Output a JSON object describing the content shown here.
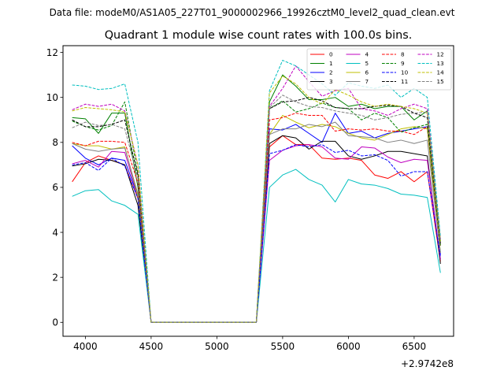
{
  "chart_data": {
    "type": "line",
    "suptitle": "Data file: modeM0/AS1A05_227T01_9000002966_19926cztM0_level2_quad_clean.evt",
    "title": "Quadrant 1 module wise count rates with 100.0s bins.",
    "xlabel": "",
    "ylabel": "",
    "x_offset_label": "+2.9742e8",
    "xlim": [
      3830,
      6800
    ],
    "ylim": [
      -0.62,
      12.3
    ],
    "xticks": [
      4000,
      4500,
      5000,
      5500,
      6000,
      6500
    ],
    "xtick_labels": [
      "4000",
      "4500",
      "5000",
      "5500",
      "6000",
      "6500"
    ],
    "yticks": [
      0,
      2,
      4,
      6,
      8,
      10,
      12
    ],
    "ytick_labels": [
      "0",
      "2",
      "4",
      "6",
      "8",
      "10",
      "12"
    ],
    "legend_position": "upper-right",
    "legend_columns": 4,
    "x": [
      3900,
      4000,
      4100,
      4200,
      4300,
      4400,
      4500,
      4600,
      4700,
      4800,
      4900,
      5000,
      5100,
      5200,
      5300,
      5400,
      5500,
      5600,
      5700,
      5800,
      5900,
      6000,
      6100,
      6200,
      6300,
      6400,
      6500,
      6600,
      6700
    ],
    "series": [
      {
        "name": "0",
        "color": "#ff0000",
        "dash": "solid",
        "values": [
          6.25,
          7.1,
          7.4,
          7.2,
          7.0,
          5.5,
          0.0,
          0.0,
          0.0,
          0.0,
          0.0,
          0.0,
          0.0,
          0.0,
          0.0,
          7.8,
          8.3,
          7.9,
          7.9,
          7.3,
          7.25,
          7.3,
          7.2,
          6.55,
          6.4,
          6.7,
          6.25,
          6.7,
          2.7
        ]
      },
      {
        "name": "1",
        "color": "#008000",
        "dash": "solid",
        "values": [
          9.1,
          9.05,
          8.4,
          9.3,
          9.3,
          6.0,
          0.0,
          0.0,
          0.0,
          0.0,
          0.0,
          0.0,
          0.0,
          0.0,
          0.0,
          9.8,
          11.0,
          10.5,
          9.9,
          9.9,
          10.0,
          9.6,
          9.7,
          9.5,
          9.6,
          9.6,
          9.0,
          9.4,
          3.6
        ]
      },
      {
        "name": "2",
        "color": "#0000ff",
        "dash": "solid",
        "values": [
          7.85,
          7.3,
          7.0,
          7.3,
          7.2,
          5.6,
          0.0,
          0.0,
          0.0,
          0.0,
          0.0,
          0.0,
          0.0,
          0.0,
          0.0,
          8.6,
          8.55,
          8.8,
          8.4,
          8.0,
          9.3,
          8.4,
          8.5,
          8.2,
          8.4,
          8.5,
          8.6,
          8.7,
          3.0
        ]
      },
      {
        "name": "3",
        "color": "#000000",
        "dash": "solid",
        "values": [
          6.95,
          7.05,
          7.25,
          7.2,
          7.0,
          5.2,
          0.0,
          0.0,
          0.0,
          0.0,
          0.0,
          0.0,
          0.0,
          0.0,
          0.0,
          7.95,
          8.3,
          8.2,
          7.7,
          8.05,
          8.05,
          7.4,
          7.25,
          7.4,
          7.6,
          7.6,
          7.5,
          7.4,
          2.6
        ]
      },
      {
        "name": "4",
        "color": "#bf00bf",
        "dash": "solid",
        "values": [
          7.05,
          7.2,
          6.9,
          7.6,
          7.55,
          5.6,
          0.0,
          0.0,
          0.0,
          0.0,
          0.0,
          0.0,
          0.0,
          0.0,
          0.0,
          7.2,
          7.65,
          7.85,
          7.9,
          7.8,
          7.3,
          7.25,
          7.8,
          7.75,
          7.35,
          7.1,
          7.25,
          7.2,
          2.8
        ]
      },
      {
        "name": "5",
        "color": "#00bfbf",
        "dash": "solid",
        "values": [
          5.6,
          5.85,
          5.9,
          5.4,
          5.2,
          4.8,
          0.0,
          0.0,
          0.0,
          0.0,
          0.0,
          0.0,
          0.0,
          0.0,
          0.0,
          6.0,
          6.55,
          6.8,
          6.35,
          6.1,
          5.35,
          6.35,
          6.15,
          6.1,
          5.95,
          5.7,
          5.65,
          5.55,
          2.2
        ]
      },
      {
        "name": "6",
        "color": "#bfbf00",
        "dash": "solid",
        "values": [
          7.95,
          7.85,
          7.85,
          7.7,
          7.8,
          5.6,
          0.0,
          0.0,
          0.0,
          0.0,
          0.0,
          0.0,
          0.0,
          0.0,
          0.0,
          8.35,
          9.2,
          8.9,
          8.65,
          8.8,
          8.7,
          8.4,
          8.2,
          8.1,
          8.35,
          8.6,
          8.7,
          8.6,
          3.1
        ]
      },
      {
        "name": "7",
        "color": "#808080",
        "dash": "solid",
        "values": [
          7.95,
          7.7,
          7.6,
          7.7,
          7.75,
          5.7,
          0.0,
          0.0,
          0.0,
          0.0,
          0.0,
          0.0,
          0.0,
          0.0,
          0.0,
          8.35,
          8.6,
          8.6,
          8.8,
          8.7,
          8.9,
          8.3,
          8.25,
          8.2,
          8.0,
          8.1,
          7.95,
          8.1,
          3.1
        ]
      },
      {
        "name": "8",
        "color": "#ff0000",
        "dash": "dashed",
        "values": [
          8.0,
          7.85,
          8.05,
          8.05,
          8.0,
          6.2,
          0.0,
          0.0,
          0.0,
          0.0,
          0.0,
          0.0,
          0.0,
          0.0,
          0.0,
          9.0,
          9.1,
          9.3,
          9.2,
          9.2,
          8.5,
          8.6,
          8.55,
          8.6,
          8.5,
          8.5,
          8.35,
          8.7,
          3.4
        ]
      },
      {
        "name": "9",
        "color": "#008000",
        "dash": "dashed",
        "values": [
          8.95,
          8.7,
          8.55,
          8.75,
          9.8,
          6.6,
          0.0,
          0.0,
          0.0,
          0.0,
          0.0,
          0.0,
          0.0,
          0.0,
          0.0,
          9.5,
          9.85,
          9.35,
          9.5,
          9.75,
          9.55,
          9.5,
          9.0,
          9.3,
          9.1,
          8.45,
          8.65,
          8.8,
          3.4
        ]
      },
      {
        "name": "10",
        "color": "#0000ff",
        "dash": "dashed",
        "values": [
          7.0,
          7.1,
          6.75,
          7.3,
          6.95,
          5.5,
          0.0,
          0.0,
          0.0,
          0.0,
          0.0,
          0.0,
          0.0,
          0.0,
          0.0,
          7.5,
          7.65,
          7.9,
          7.8,
          7.9,
          7.55,
          7.65,
          7.4,
          7.45,
          7.2,
          6.5,
          6.7,
          6.7,
          2.9
        ]
      },
      {
        "name": "11",
        "color": "#000000",
        "dash": "dashed",
        "values": [
          9.0,
          8.7,
          8.7,
          8.8,
          9.0,
          6.5,
          0.0,
          0.0,
          0.0,
          0.0,
          0.0,
          0.0,
          0.0,
          0.0,
          0.0,
          9.5,
          9.8,
          9.85,
          10.0,
          9.85,
          9.55,
          9.5,
          9.5,
          9.6,
          9.65,
          9.6,
          9.3,
          9.1,
          3.5
        ]
      },
      {
        "name": "12",
        "color": "#bf00bf",
        "dash": "dashed",
        "values": [
          9.45,
          9.7,
          9.6,
          9.7,
          9.4,
          7.0,
          0.0,
          0.0,
          0.0,
          0.0,
          0.0,
          0.0,
          0.0,
          0.0,
          0.0,
          9.6,
          10.4,
          11.4,
          10.7,
          10.05,
          10.3,
          10.4,
          9.5,
          9.4,
          9.2,
          9.5,
          9.7,
          9.5,
          3.7
        ]
      },
      {
        "name": "13",
        "color": "#00bfbf",
        "dash": "dashed",
        "values": [
          10.55,
          10.5,
          10.35,
          10.4,
          10.6,
          8.0,
          0.0,
          0.0,
          0.0,
          0.0,
          0.0,
          0.0,
          0.0,
          0.0,
          0.0,
          10.3,
          11.65,
          11.4,
          11.0,
          10.6,
          10.1,
          10.65,
          10.5,
          10.4,
          10.55,
          10.0,
          10.4,
          10.0,
          3.8
        ]
      },
      {
        "name": "14",
        "color": "#bfbf00",
        "dash": "dashed",
        "values": [
          9.4,
          9.55,
          9.5,
          9.45,
          9.35,
          7.0,
          0.0,
          0.0,
          0.0,
          0.0,
          0.0,
          0.0,
          0.0,
          0.0,
          0.0,
          10.2,
          10.95,
          10.6,
          10.0,
          9.7,
          10.35,
          10.1,
          9.8,
          9.6,
          9.7,
          9.6,
          9.5,
          9.3,
          3.6
        ]
      },
      {
        "name": "15",
        "color": "#808080",
        "dash": "dashed",
        "values": [
          8.65,
          8.9,
          8.75,
          8.8,
          8.6,
          6.4,
          0.0,
          0.0,
          0.0,
          0.0,
          0.0,
          0.0,
          0.0,
          0.0,
          0.0,
          9.55,
          10.1,
          9.8,
          9.6,
          9.55,
          9.4,
          9.3,
          9.2,
          9.0,
          9.1,
          9.25,
          9.3,
          9.35,
          3.6
        ]
      }
    ]
  }
}
